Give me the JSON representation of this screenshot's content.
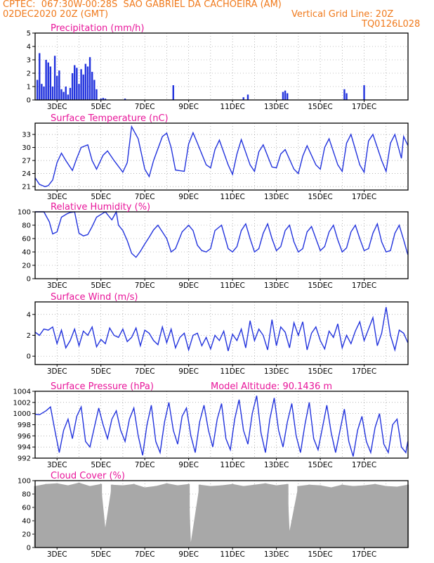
{
  "header": {
    "line1": "CPTEC:  067:30W-00:28S  SAO GABRIEL DA CACHOEIRA (AM)",
    "line2_left": "02DEC2020 20Z (GMT)",
    "line2_right": "Vertical Grid Line: 20Z",
    "line3_right": "TQ0126L028"
  },
  "colors": {
    "header": "#f07a1c",
    "title": "#e8169a",
    "line": "#2233dd",
    "cloud": "#a8a8a8",
    "grid": "#888888"
  },
  "chart_data": [
    {
      "type": "bar",
      "title": "Precipitation (mm/h)",
      "ylim": [
        0,
        5
      ],
      "yticks": [
        "0",
        "1",
        "2",
        "3",
        "4",
        "5"
      ],
      "xticks": [
        "3DEC",
        "5DEC",
        "7DEC",
        "9DEC",
        "11DEC",
        "13DEC",
        "15DEC",
        "17DEC"
      ],
      "x": [
        0.1,
        0.2,
        0.3,
        0.4,
        0.5,
        0.6,
        0.7,
        0.8,
        0.9,
        1.0,
        1.1,
        1.2,
        1.3,
        1.4,
        1.5,
        1.6,
        1.7,
        1.8,
        1.9,
        2.0,
        2.1,
        2.2,
        2.3,
        2.4,
        2.5,
        2.6,
        2.7,
        2.8,
        3.0,
        3.1,
        3.2,
        4.1,
        6.3,
        9.5,
        9.7,
        11.3,
        11.4,
        11.5,
        14.1,
        14.2,
        15.0
      ],
      "values": [
        1.5,
        3.5,
        1.2,
        1.0,
        3.0,
        2.8,
        2.5,
        1.0,
        3.3,
        1.8,
        2.2,
        0.8,
        0.6,
        1.0,
        0.4,
        0.9,
        2.0,
        2.6,
        2.4,
        1.2,
        2.3,
        1.9,
        2.7,
        2.5,
        3.2,
        2.1,
        1.5,
        0.8,
        0.1,
        0.15,
        0.1,
        0.1,
        1.1,
        0.2,
        0.4,
        0.6,
        0.7,
        0.5,
        0.8,
        0.5,
        1.1
      ]
    },
    {
      "type": "line",
      "title": "Surface Temperature (nC)",
      "ylim": [
        20.2,
        35.6
      ],
      "yticks": [
        "21",
        "24",
        "27",
        "30",
        "33"
      ],
      "xticks": [
        "3DEC",
        "5DEC",
        "7DEC",
        "9DEC",
        "11DEC",
        "13DEC",
        "15DEC",
        "17DEC"
      ],
      "x": [
        0.0,
        0.2,
        0.45,
        0.6,
        0.8,
        1.0,
        1.2,
        1.4,
        1.7,
        1.9,
        2.1,
        2.4,
        2.6,
        2.8,
        3.1,
        3.3,
        3.6,
        4.0,
        4.2,
        4.4,
        4.7,
        5.0,
        5.2,
        5.4,
        5.8,
        6.0,
        6.2,
        6.4,
        6.8,
        7.0,
        7.2,
        7.4,
        7.8,
        8.0,
        8.2,
        8.4,
        8.8,
        9.0,
        9.2,
        9.4,
        9.8,
        10.0,
        10.2,
        10.4,
        10.8,
        11.0,
        11.2,
        11.4,
        11.8,
        12.0,
        12.2,
        12.4,
        12.8,
        13.0,
        13.2,
        13.4,
        13.8,
        14.0,
        14.2,
        14.4,
        14.8,
        15.0,
        15.2,
        15.4,
        15.8,
        16.0,
        16.2,
        16.4,
        16.7,
        16.8,
        16.99
      ],
      "values": [
        23.0,
        21.5,
        21.0,
        21.2,
        22.5,
        26.5,
        28.7,
        27.0,
        24.7,
        27.5,
        30.0,
        30.6,
        27.0,
        25.0,
        28.2,
        29.2,
        27.0,
        24.3,
        26.5,
        34.8,
        32.0,
        25.0,
        23.3,
        27.0,
        32.5,
        33.3,
        30.0,
        24.8,
        24.5,
        30.8,
        33.4,
        31.0,
        26.0,
        25.3,
        29.5,
        31.7,
        26.0,
        23.8,
        28.5,
        31.8,
        26.0,
        24.5,
        29.0,
        30.6,
        25.5,
        25.3,
        28.5,
        29.5,
        25.0,
        24.0,
        28.0,
        30.4,
        26.0,
        25.0,
        30.0,
        32.0,
        26.0,
        24.5,
        31.0,
        33.0,
        26.0,
        24.3,
        31.5,
        33.0,
        27.0,
        24.5,
        31.0,
        33.0,
        27.5,
        32.5,
        30.5
      ]
    },
    {
      "type": "line",
      "title": "Relative Humidity (%)",
      "ylim": [
        0,
        100
      ],
      "yticks": [
        "0",
        "20",
        "40",
        "60",
        "80",
        "100"
      ],
      "xticks": [
        "3DEC",
        "5DEC",
        "7DEC",
        "9DEC",
        "11DEC",
        "13DEC",
        "15DEC",
        "17DEC"
      ],
      "x": [
        0.0,
        0.4,
        0.65,
        0.8,
        1.0,
        1.2,
        1.45,
        1.6,
        1.8,
        2.0,
        2.2,
        2.4,
        2.6,
        2.8,
        3.0,
        3.2,
        3.5,
        3.7,
        3.8,
        4.0,
        4.2,
        4.4,
        4.6,
        4.8,
        5.0,
        5.2,
        5.4,
        5.6,
        5.8,
        6.0,
        6.2,
        6.4,
        6.7,
        7.0,
        7.2,
        7.4,
        7.6,
        7.8,
        8.0,
        8.2,
        8.5,
        8.8,
        9.0,
        9.2,
        9.4,
        9.6,
        9.8,
        10.0,
        10.2,
        10.4,
        10.6,
        10.8,
        11.0,
        11.2,
        11.4,
        11.6,
        11.8,
        12.0,
        12.2,
        12.4,
        12.6,
        12.8,
        13.0,
        13.2,
        13.4,
        13.6,
        13.8,
        14.0,
        14.2,
        14.4,
        14.6,
        14.8,
        15.0,
        15.2,
        15.4,
        15.6,
        15.8,
        16.0,
        16.2,
        16.4,
        16.6,
        16.8,
        16.99
      ],
      "values": [
        100,
        100,
        85,
        67,
        70,
        92,
        97,
        99,
        100,
        68,
        64,
        66,
        78,
        92,
        96,
        100,
        88,
        100,
        80,
        72,
        57,
        38,
        32,
        41,
        52,
        62,
        73,
        80,
        70,
        60,
        40,
        45,
        70,
        80,
        72,
        50,
        42,
        40,
        45,
        72,
        80,
        45,
        40,
        48,
        72,
        82,
        60,
        40,
        45,
        68,
        82,
        60,
        42,
        48,
        72,
        80,
        55,
        40,
        45,
        70,
        78,
        60,
        42,
        48,
        70,
        80,
        58,
        40,
        46,
        70,
        80,
        60,
        42,
        45,
        68,
        82,
        55,
        40,
        42,
        68,
        80,
        58,
        36
      ]
    },
    {
      "type": "line",
      "title": "Surface Wind (m/s)",
      "ylim": [
        -0.8,
        5.2
      ],
      "yticks": [
        "0",
        "2",
        "4"
      ],
      "xticks": [
        "3DEC",
        "5DEC",
        "7DEC",
        "9DEC",
        "11DEC",
        "13DEC",
        "15DEC",
        "17DEC"
      ],
      "x": [
        0.0,
        0.2,
        0.4,
        0.6,
        0.8,
        1.0,
        1.2,
        1.4,
        1.6,
        1.8,
        2.0,
        2.2,
        2.4,
        2.6,
        2.8,
        3.0,
        3.2,
        3.4,
        3.6,
        3.8,
        4.0,
        4.2,
        4.4,
        4.6,
        4.8,
        5.0,
        5.2,
        5.4,
        5.6,
        5.8,
        6.0,
        6.2,
        6.4,
        6.6,
        6.8,
        7.0,
        7.2,
        7.4,
        7.6,
        7.8,
        8.0,
        8.2,
        8.4,
        8.6,
        8.8,
        9.0,
        9.2,
        9.4,
        9.6,
        9.8,
        10.0,
        10.2,
        10.4,
        10.6,
        10.8,
        11.0,
        11.2,
        11.4,
        11.6,
        11.8,
        12.0,
        12.2,
        12.4,
        12.6,
        12.8,
        13.0,
        13.2,
        13.4,
        13.6,
        13.8,
        14.0,
        14.2,
        14.4,
        14.6,
        14.8,
        15.0,
        15.2,
        15.4,
        15.6,
        15.8,
        16.0,
        16.2,
        16.4,
        16.6,
        16.8,
        16.99
      ],
      "values": [
        2.3,
        2.0,
        2.6,
        2.5,
        2.8,
        1.2,
        2.5,
        0.8,
        1.5,
        2.6,
        1.0,
        2.4,
        2.0,
        2.8,
        0.9,
        1.6,
        1.2,
        2.7,
        2.0,
        1.8,
        2.6,
        1.4,
        1.8,
        2.7,
        1.0,
        2.5,
        2.2,
        1.5,
        1.1,
        2.8,
        1.3,
        2.6,
        0.8,
        1.8,
        2.2,
        0.6,
        2.0,
        2.2,
        1.0,
        1.8,
        0.7,
        2.0,
        1.5,
        2.4,
        0.5,
        2.1,
        1.5,
        2.6,
        0.8,
        3.4,
        1.5,
        2.6,
        2.0,
        0.6,
        3.5,
        1.0,
        2.8,
        2.3,
        0.8,
        3.2,
        2.0,
        3.3,
        0.6,
        2.2,
        2.8,
        1.5,
        0.7,
        2.4,
        1.8,
        3.1,
        0.8,
        2.0,
        1.2,
        2.4,
        3.3,
        1.5,
        2.6,
        3.7,
        1.0,
        2.2,
        4.7,
        2.0,
        0.6,
        2.5,
        2.2,
        1.3
      ]
    },
    {
      "type": "line",
      "title": "Surface Pressure (hPa)",
      "annotation": "Model Altitude: 90.1436 m",
      "ylim": [
        992,
        1004
      ],
      "yticks": [
        "992",
        "994",
        "996",
        "998",
        "1000",
        "1002",
        "1004"
      ],
      "xticks": [
        "3DEC",
        "5DEC",
        "7DEC",
        "9DEC",
        "11DEC",
        "13DEC",
        "15DEC",
        "17DEC"
      ],
      "x": [
        0.0,
        0.2,
        0.5,
        0.7,
        0.9,
        1.1,
        1.3,
        1.5,
        1.7,
        1.9,
        2.1,
        2.3,
        2.5,
        2.7,
        2.9,
        3.1,
        3.3,
        3.5,
        3.7,
        3.9,
        4.1,
        4.3,
        4.5,
        4.7,
        4.9,
        5.1,
        5.3,
        5.5,
        5.7,
        5.9,
        6.1,
        6.3,
        6.5,
        6.7,
        6.9,
        7.1,
        7.3,
        7.5,
        7.7,
        7.9,
        8.1,
        8.3,
        8.5,
        8.7,
        8.9,
        9.1,
        9.3,
        9.5,
        9.7,
        9.9,
        10.1,
        10.3,
        10.5,
        10.7,
        10.9,
        11.1,
        11.3,
        11.5,
        11.7,
        11.9,
        12.1,
        12.3,
        12.5,
        12.7,
        12.9,
        13.1,
        13.3,
        13.5,
        13.7,
        13.9,
        14.1,
        14.3,
        14.5,
        14.7,
        14.9,
        15.1,
        15.3,
        15.5,
        15.7,
        15.9,
        16.1,
        16.3,
        16.5,
        16.7,
        16.9,
        16.99
      ],
      "values": [
        999.9,
        999.8,
        1000.5,
        1001.2,
        997.0,
        993.0,
        997.0,
        999.0,
        995.5,
        999.5,
        1001.2,
        995.0,
        994.0,
        997.5,
        1001.0,
        998.0,
        995.5,
        999.0,
        1000.5,
        997.0,
        995.0,
        999.0,
        1001.0,
        996.0,
        992.5,
        998.0,
        1001.5,
        995.0,
        993.0,
        998.5,
        1002.0,
        997.0,
        994.5,
        999.5,
        1001.0,
        996.0,
        993.0,
        998.5,
        1001.5,
        997.0,
        994.0,
        999.0,
        1001.8,
        995.5,
        993.5,
        999.0,
        1002.5,
        997.0,
        994.5,
        1000.0,
        1003.2,
        996.5,
        993.0,
        999.0,
        1002.8,
        997.0,
        994.0,
        998.5,
        1001.8,
        996.0,
        993.0,
        998.0,
        1002.0,
        995.5,
        993.5,
        997.5,
        1001.5,
        996.5,
        993.0,
        997.0,
        1000.8,
        995.0,
        992.3,
        997.0,
        999.5,
        995.0,
        993.0,
        997.5,
        1000.0,
        994.5,
        993.0,
        998.0,
        999.0,
        994.0,
        993.0,
        995.0
      ]
    },
    {
      "type": "bar",
      "title": "Cloud Cover (%)",
      "ylim": [
        0,
        100
      ],
      "yticks": [
        "0",
        "20",
        "40",
        "60",
        "80",
        "100"
      ],
      "xticks": [
        "3DEC",
        "5DEC",
        "7DEC",
        "9DEC",
        "11DEC",
        "13DEC",
        "15DEC",
        "17DEC"
      ],
      "note": "near-continuous grey bars mostly 80-100% with a few dips",
      "x": [
        0.0,
        0.5,
        1.0,
        1.5,
        2.0,
        2.5,
        3.0,
        3.2,
        3.5,
        4.0,
        4.5,
        5.0,
        5.5,
        6.0,
        6.5,
        7.0,
        7.1,
        7.5,
        8.0,
        8.5,
        9.0,
        9.5,
        10.0,
        10.5,
        11.0,
        11.5,
        11.6,
        12.0,
        12.5,
        13.0,
        13.5,
        14.0,
        14.5,
        15.0,
        15.5,
        16.0,
        16.5,
        16.99
      ],
      "values": [
        92,
        95,
        96,
        93,
        97,
        92,
        95,
        30,
        94,
        93,
        95,
        90,
        92,
        96,
        93,
        95,
        8,
        94,
        92,
        93,
        95,
        92,
        94,
        96,
        93,
        95,
        25,
        92,
        94,
        93,
        90,
        94,
        92,
        93,
        95,
        92,
        91,
        94
      ]
    }
  ]
}
